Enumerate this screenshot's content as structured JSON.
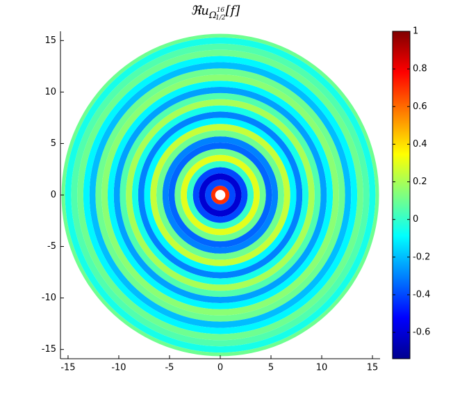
{
  "chart_data": {
    "type": "radial-field",
    "title": {
      "base": "ℜu",
      "sub": "Ω",
      "subsub": "1/2",
      "subsup": "16",
      "tail": "[f]"
    },
    "radii": [
      0.5,
      0.9,
      1.5,
      2.1,
      2.7,
      3.3,
      3.9,
      4.5,
      5.1,
      5.7,
      6.3,
      6.9,
      7.5,
      8.1,
      8.7,
      9.3,
      9.9,
      10.5,
      11.1,
      11.7,
      12.3,
      12.9,
      13.5,
      14.1,
      14.7,
      15.3,
      15.65
    ],
    "values": [
      0.7,
      -0.4,
      -0.6,
      -0.4,
      0.0,
      0.3,
      0.1,
      -0.35,
      -0.3,
      0.1,
      0.25,
      -0.1,
      -0.3,
      -0.05,
      0.2,
      0.05,
      -0.25,
      -0.1,
      0.15,
      0.1,
      -0.2,
      -0.1,
      0.1,
      0.05,
      -0.05,
      0.1
    ],
    "xlim": [
      -15.75,
      15.75
    ],
    "xticks": [
      -15,
      -10,
      -5,
      0,
      5,
      10,
      15
    ],
    "ylim": [
      -15.9,
      15.9
    ],
    "yticks": [
      -15,
      -10,
      -5,
      0,
      5,
      10,
      15
    ],
    "clim": [
      -0.74,
      1
    ],
    "cticks": [
      -0.6,
      -0.4,
      -0.2,
      0,
      0.2,
      0.4,
      0.6,
      0.8,
      1
    ],
    "colormap": "jet"
  }
}
